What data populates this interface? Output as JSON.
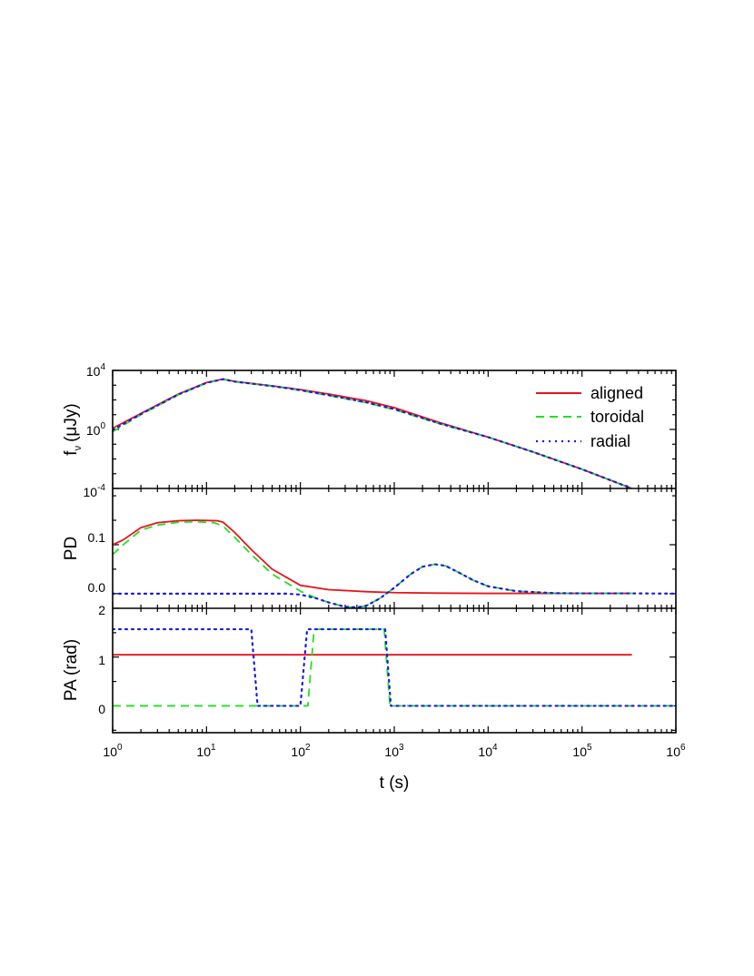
{
  "chart_data": {
    "type": "line",
    "x_axis": {
      "label": "t (s)",
      "scale": "log",
      "range": [
        1,
        1000000
      ],
      "tick_labels": [
        "10^0",
        "10^1",
        "10^2",
        "10^3",
        "10^4",
        "10^5",
        "10^6"
      ]
    },
    "legend": {
      "placement": "top-right",
      "entries": [
        "aligned",
        "toroidal",
        "radial"
      ]
    },
    "colors": {
      "aligned": "#e8141c",
      "toroidal": "#22e022",
      "radial": "#1a1ae6"
    },
    "panels": [
      {
        "id": "flux",
        "ylabel_main": "f",
        "ylabel_sub": "ν",
        "ylabel_unit": "(μJy)",
        "yscale": "log",
        "ylim": [
          0.0001,
          10000
        ],
        "tick_labels": [
          "10^4",
          "10^0",
          "10^-4"
        ],
        "series": [
          {
            "name": "aligned",
            "x": [
              1,
              2,
              5,
              10,
              15,
              20,
              50,
              100,
              200,
              500,
              1000,
              3000,
              10000,
              30000,
              100000,
              340000
            ],
            "y": [
              1.2,
              12,
              250,
              1500,
              2600,
              1800,
              900,
              500,
              250,
              90,
              30,
              3,
              0.3,
              0.03,
              0.002,
              0.0001
            ]
          },
          {
            "name": "toroidal",
            "x": [
              1,
              2,
              5,
              10,
              15,
              20,
              50,
              100,
              200,
              500,
              1000,
              3000,
              10000,
              30000,
              100000,
              340000
            ],
            "y": [
              0.7,
              10,
              220,
              1400,
              2500,
              1700,
              850,
              450,
              200,
              65,
              22,
              2.5,
              0.3,
              0.03,
              0.002,
              0.0001
            ]
          },
          {
            "name": "radial",
            "x": [
              1,
              2,
              5,
              10,
              15,
              20,
              50,
              100,
              200,
              500,
              1000,
              3000,
              10000,
              30000,
              100000,
              340000
            ],
            "y": [
              0.9,
              11,
              230,
              1450,
              2550,
              1750,
              870,
              460,
              210,
              70,
              24,
              2.6,
              0.3,
              0.03,
              0.002,
              0.0001
            ]
          }
        ]
      },
      {
        "id": "pd",
        "ylabel_main": "PD",
        "yscale": "linear",
        "ylim": [
          -0.03,
          0.215
        ],
        "tick_labels": [
          "0.1",
          "0.0"
        ],
        "tick_values": [
          0.1,
          0.0
        ],
        "series": [
          {
            "name": "aligned",
            "x": [
              1,
              1.3,
              2,
              3,
              5,
              8,
              13,
              15,
              20,
              30,
              50,
              100,
              200,
              500,
              1000,
              3000,
              10000,
              340000
            ],
            "y": [
              0.1,
              0.11,
              0.135,
              0.145,
              0.149,
              0.15,
              0.149,
              0.146,
              0.125,
              0.09,
              0.05,
              0.017,
              0.008,
              0.004,
              0.002,
              0.001,
              0.0005,
              0.0005
            ]
          },
          {
            "name": "toroidal",
            "x": [
              1,
              1.3,
              2,
              3,
              5,
              8,
              12,
              15,
              20,
              30,
              50,
              100,
              150,
              200,
              300,
              400,
              500,
              700,
              1000,
              1500,
              2000,
              2700,
              3500,
              5000,
              7000,
              10000,
              20000,
              50000,
              100000,
              340000
            ],
            "y": [
              0.08,
              0.1,
              0.13,
              0.14,
              0.146,
              0.147,
              0.145,
              0.138,
              0.115,
              0.08,
              0.04,
              0.005,
              -0.01,
              -0.018,
              -0.027,
              -0.028,
              -0.025,
              -0.01,
              0.012,
              0.04,
              0.055,
              0.06,
              0.057,
              0.042,
              0.027,
              0.015,
              0.005,
              0.001,
              0.0005,
              0.0005
            ]
          },
          {
            "name": "radial",
            "x": [
              1,
              70,
              100,
              150,
              200,
              300,
              400,
              500,
              700,
              1000,
              1500,
              2000,
              2700,
              3500,
              5000,
              7000,
              10000,
              20000,
              50000,
              100000,
              340000,
              1000000
            ],
            "y": [
              0,
              0,
              -0.002,
              -0.01,
              -0.018,
              -0.027,
              -0.028,
              -0.025,
              -0.01,
              0.012,
              0.04,
              0.055,
              0.06,
              0.057,
              0.042,
              0.027,
              0.015,
              0.005,
              0.001,
              0.0005,
              0.0005,
              0
            ]
          }
        ]
      },
      {
        "id": "pa",
        "ylabel_main": "PA (rad)",
        "yscale": "linear",
        "ylim": [
          -0.55,
          2.0
        ],
        "tick_labels": [
          "2",
          "1",
          "0"
        ],
        "tick_values": [
          2,
          1,
          0
        ],
        "series": [
          {
            "name": "aligned",
            "x": [
              1,
              340000
            ],
            "y": [
              1.047,
              1.047
            ]
          },
          {
            "name": "toroidal",
            "x": [
              1,
              120,
              140,
              780,
              900,
              1000000
            ],
            "y": [
              0,
              0,
              1.5708,
              1.5708,
              0,
              0
            ]
          },
          {
            "name": "radial",
            "x": [
              1,
              30,
              35,
              100,
              118,
              800,
              920,
              1000000
            ],
            "y": [
              1.5708,
              1.5708,
              0,
              0,
              1.5708,
              1.5708,
              0,
              0
            ]
          }
        ]
      }
    ]
  }
}
